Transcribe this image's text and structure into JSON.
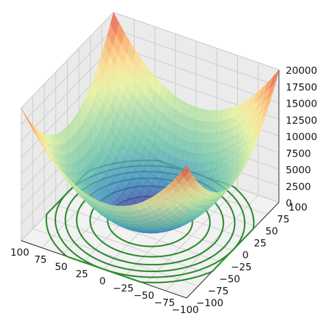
{
  "chart_data": {
    "type": "surface",
    "title": "",
    "function": "z = x^2 + y^2",
    "colormap": "Spectral_r",
    "contour_projection_color": "#2e8b2e",
    "contour_levels": [
      2000,
      4000,
      6000,
      8000,
      10000,
      12000
    ],
    "x_ticks": [
      -100,
      -75,
      -50,
      -25,
      0,
      25,
      50,
      75,
      100
    ],
    "y_ticks": [
      -100,
      -75,
      -50,
      -25,
      0,
      25,
      50,
      75,
      100
    ],
    "z_ticks": [
      0,
      2500,
      5000,
      7500,
      10000,
      12500,
      15000,
      17500,
      20000
    ],
    "xlim": [
      -100,
      100
    ],
    "ylim": [
      -100,
      100
    ],
    "zlim": [
      0,
      20000
    ],
    "grid": true,
    "xlabel": "",
    "ylabel": "",
    "zlabel": ""
  }
}
